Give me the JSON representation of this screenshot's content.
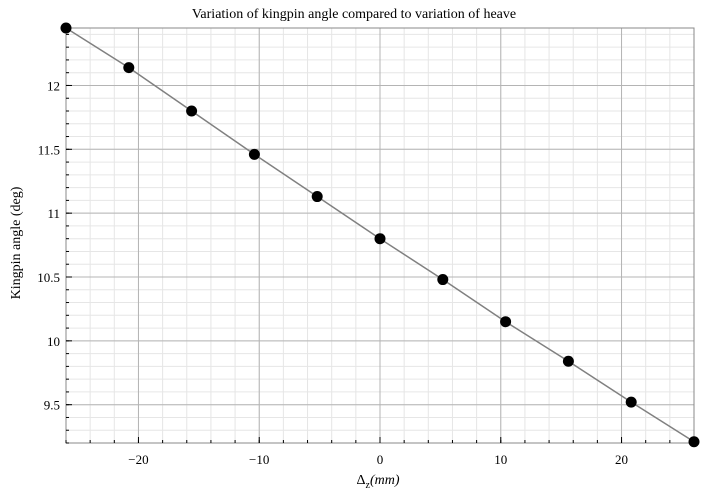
{
  "chart_data": {
    "type": "scatter",
    "title": "Variation of kingpin angle compared to variation of heave",
    "xlabel": {
      "symbol": "Δ",
      "subscript": "z",
      "unit": "(mm)"
    },
    "ylabel": "Kingpin angle (deg)",
    "xlim": [
      -26,
      26
    ],
    "ylim": [
      9.2,
      12.45
    ],
    "xticks": [
      -20,
      -10,
      0,
      10,
      20
    ],
    "xtick_labels": [
      "−20",
      "−10",
      "0",
      "10",
      "20"
    ],
    "yticks": [
      9.5,
      10,
      10.5,
      11,
      11.5,
      12
    ],
    "ytick_labels": [
      "9.5",
      "10",
      "10.5",
      "11",
      "11.5",
      "12"
    ],
    "grid": true,
    "colors": {
      "marker": "#000000",
      "line": "#808080",
      "grid_major": "#b4b4b4",
      "grid_minor": "#e6e6e6",
      "frame": "#888888"
    },
    "series": [
      {
        "style": "line+markers",
        "x": [
          -26,
          -20.8,
          -15.6,
          -10.4,
          -5.2,
          0,
          5.2,
          10.4,
          15.6,
          20.8,
          26
        ],
        "y": [
          12.45,
          12.14,
          11.8,
          11.46,
          11.13,
          10.8,
          10.48,
          10.15,
          9.84,
          9.52,
          9.21
        ]
      }
    ]
  }
}
